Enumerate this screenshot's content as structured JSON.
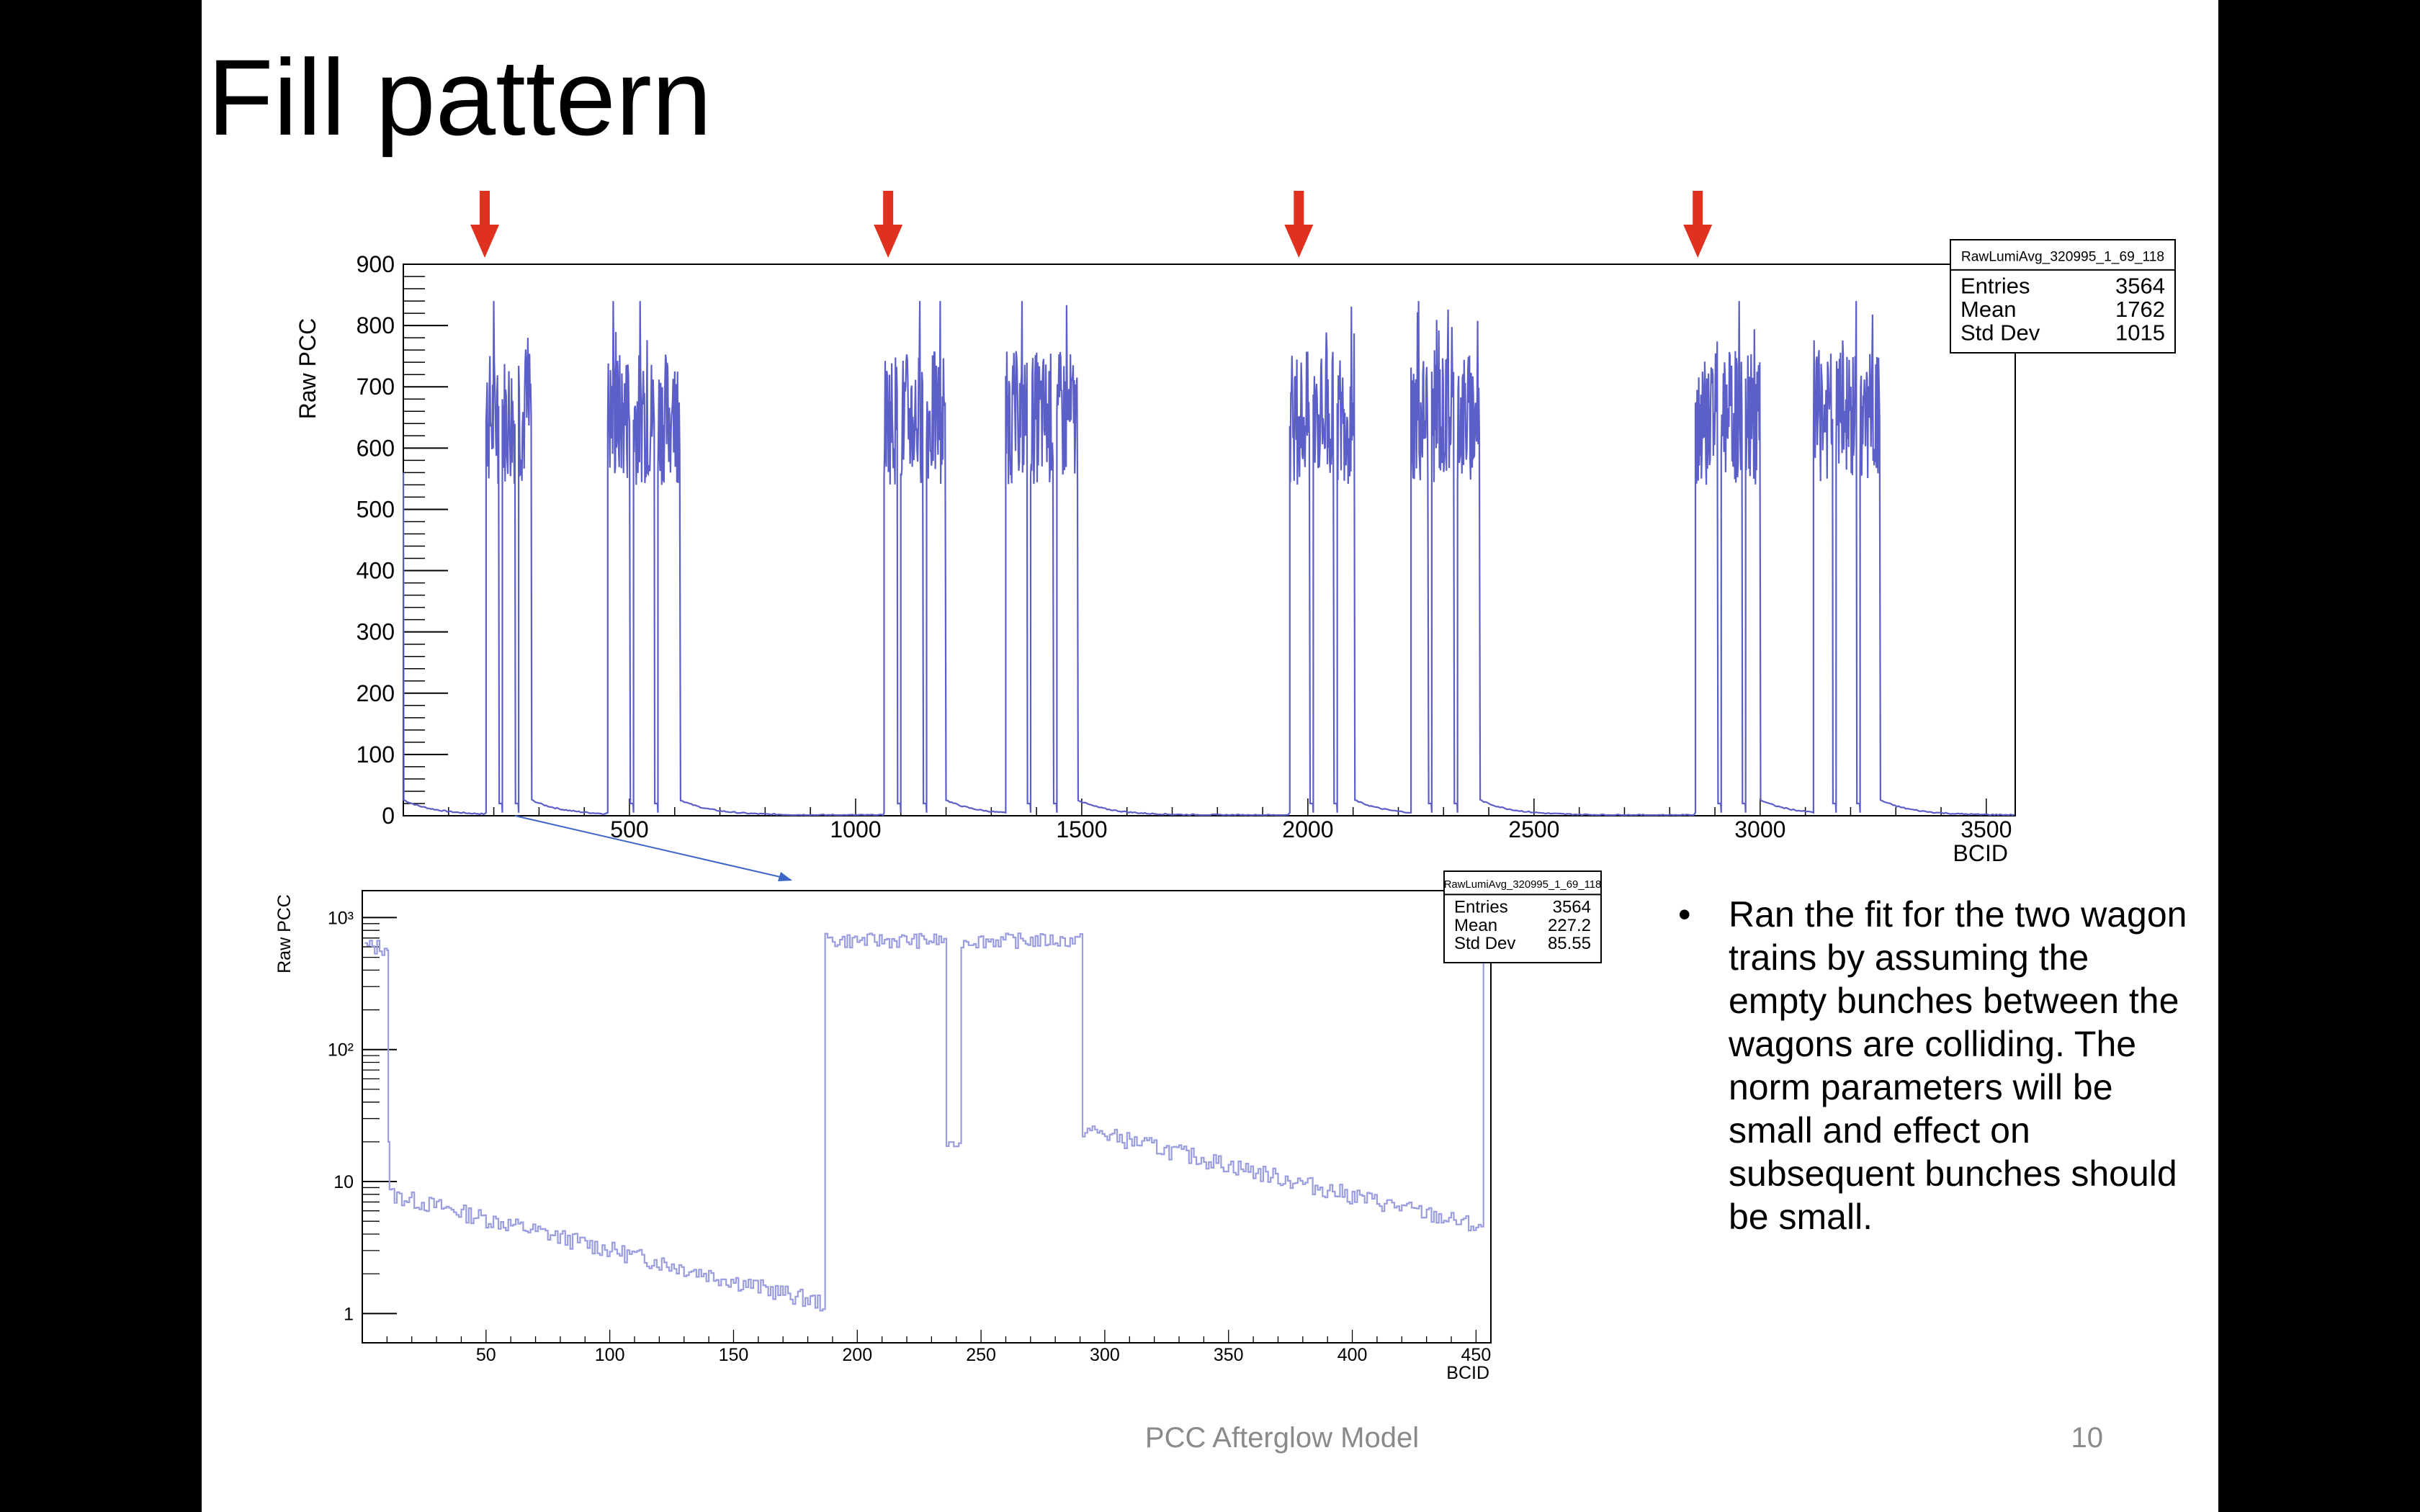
{
  "slide": {
    "title": "Fill pattern",
    "bullet": "Ran the fit for the two wagon trains by assuming the empty bunches between the wagons are colliding. The norm parameters will be small and effect on subsequent bunches should be small.",
    "footer": "PCC Afterglow Model",
    "page_number": "10"
  },
  "colors": {
    "line": "#5b5fc7",
    "line_light": "#9a9de0",
    "arrow": "#e0311f"
  },
  "chart_data": [
    {
      "type": "line",
      "ylabel": "Raw PCC",
      "xlabel": "BCID",
      "xlim": [
        0,
        3564
      ],
      "ylim": [
        0,
        900
      ],
      "xticks": [
        "500",
        "1000",
        "1500",
        "2000",
        "2500",
        "3000",
        "3500"
      ],
      "yticks": [
        "0",
        "100",
        "200",
        "300",
        "400",
        "500",
        "600",
        "700",
        "800",
        "900"
      ],
      "stats": {
        "title": "RawLumiAvg_320995_1_69_118",
        "rows": [
          {
            "label": "Entries",
            "value": "3564"
          },
          {
            "label": "Mean",
            "value": "1762"
          },
          {
            "label": "Std Dev",
            "value": "1015"
          }
        ]
      },
      "arrow_bcids": [
        180,
        1072,
        1980,
        2862
      ],
      "plateau_level": 650,
      "afterglow_start": 25,
      "trains": [
        {
          "segments": [
            [
              183,
              211
            ],
            [
              219,
              247
            ],
            [
              255,
              283
            ]
          ]
        },
        {
          "segments": [
            [
              452,
              501
            ],
            [
              509,
              555
            ],
            [
              563,
              612
            ]
          ]
        },
        {
          "segments": [
            [
              1063,
              1092
            ],
            [
              1100,
              1149
            ],
            [
              1157,
              1199
            ]
          ]
        },
        {
          "segments": [
            [
              1332,
              1379
            ],
            [
              1387,
              1437
            ],
            [
              1445,
              1491
            ]
          ]
        },
        {
          "segments": [
            [
              1960,
              2004
            ],
            [
              2012,
              2057
            ],
            [
              2065,
              2103
            ]
          ]
        },
        {
          "segments": [
            [
              2228,
              2266
            ],
            [
              2274,
              2323
            ],
            [
              2331,
              2380
            ]
          ]
        },
        {
          "segments": [
            [
              2857,
              2906
            ],
            [
              2914,
              2960
            ],
            [
              2968,
              3000
            ]
          ]
        },
        {
          "segments": [
            [
              3118,
              3160
            ],
            [
              3168,
              3213
            ],
            [
              3221,
              3265
            ]
          ]
        }
      ]
    },
    {
      "type": "line",
      "yscale": "log",
      "ylabel": "Raw PCC",
      "xlabel": "BCID",
      "xlim": [
        0,
        456
      ],
      "ylim": [
        0.6,
        1600
      ],
      "xticks": [
        "50",
        "100",
        "150",
        "200",
        "250",
        "300",
        "350",
        "400",
        "450"
      ],
      "yticks": [
        "1",
        "10",
        "10²",
        "10³"
      ],
      "stats": {
        "title": "RawLumiAvg_320995_1_69_118",
        "rows": [
          {
            "label": "Entries",
            "value": "3564"
          },
          {
            "label": "Mean",
            "value": "227.2"
          },
          {
            "label": "Std Dev",
            "value": "85.55"
          }
        ]
      },
      "segments": [
        {
          "from": 1,
          "to": 10,
          "level": 600
        },
        {
          "from": 187,
          "to": 235,
          "level": 690
        },
        {
          "from": 242,
          "to": 290,
          "level": 690
        }
      ],
      "dip": {
        "from": 236,
        "to": 241,
        "level": 19
      },
      "afterglow": [
        {
          "from": 11,
          "to": 186,
          "start": 8,
          "end": 1.2
        },
        {
          "from": 291,
          "to": 452,
          "start": 25,
          "end": 4.5
        }
      ]
    }
  ]
}
